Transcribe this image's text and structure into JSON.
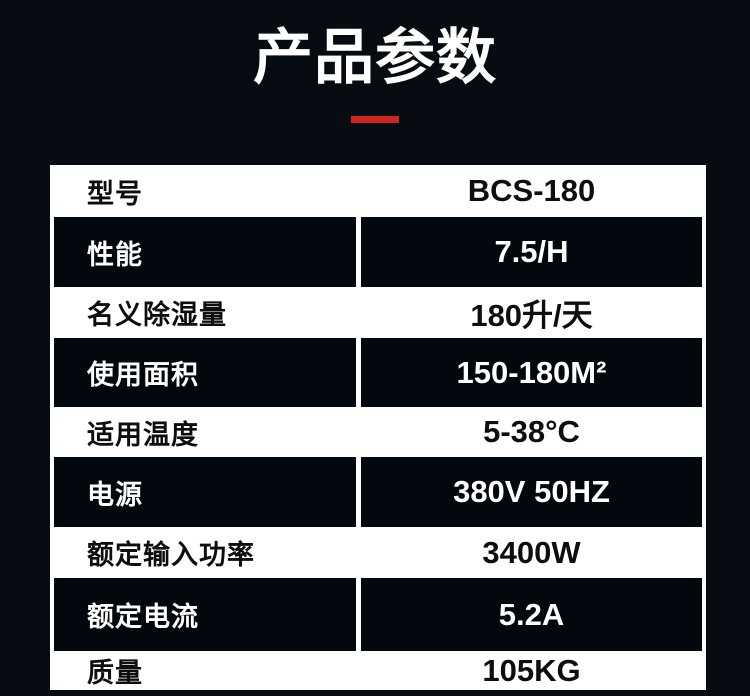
{
  "page": {
    "title": "产品参数",
    "background_color": "#060c12",
    "accent_color": "#d2241e",
    "row_dark_color": "#02080e",
    "row_light_color": "#ffffff"
  },
  "table": {
    "columns": [
      "parameter",
      "value"
    ],
    "rows": [
      {
        "label": "型号",
        "value": "BCS-180"
      },
      {
        "label": "性能",
        "value": "7.5/H"
      },
      {
        "label": "名义除湿量",
        "value": "180升/天"
      },
      {
        "label": "使用面积",
        "value": "150-180M²"
      },
      {
        "label": "适用温度",
        "value": "5-38°C"
      },
      {
        "label": "电源",
        "value": "380V 50HZ"
      },
      {
        "label": "额定输入功率",
        "value": "3400W"
      },
      {
        "label": "额定电流",
        "value": "5.2A"
      },
      {
        "label": "质量",
        "value": "105KG"
      }
    ]
  }
}
